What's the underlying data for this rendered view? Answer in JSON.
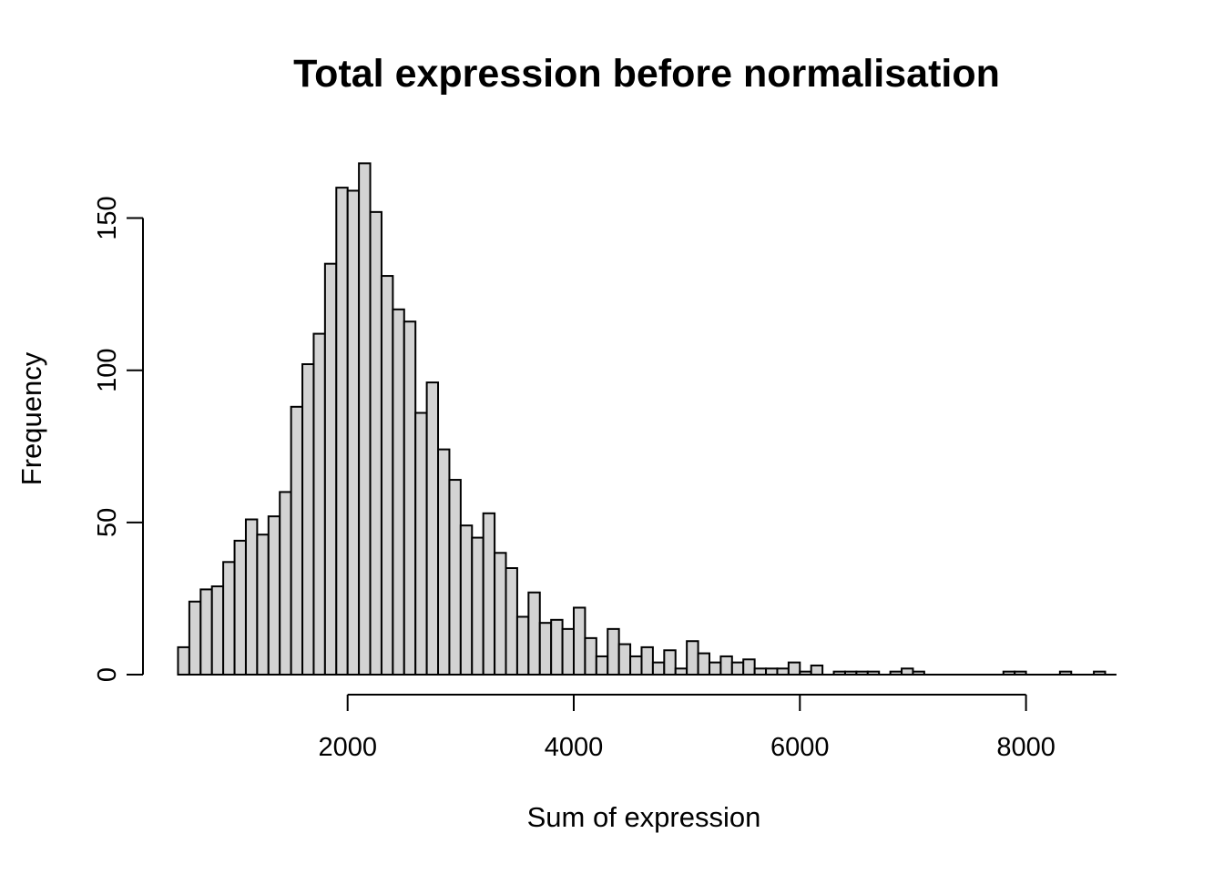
{
  "chart_data": {
    "type": "bar",
    "subtype": "histogram",
    "title": "Total expression before normalisation",
    "xlabel": "Sum of expression",
    "ylabel": "Frequency",
    "bin_start": 500,
    "bin_width": 100,
    "values": [
      9,
      24,
      28,
      29,
      37,
      44,
      51,
      46,
      52,
      60,
      88,
      102,
      112,
      135,
      160,
      159,
      168,
      152,
      131,
      120,
      116,
      86,
      96,
      74,
      64,
      49,
      45,
      53,
      40,
      35,
      19,
      27,
      17,
      18,
      15,
      22,
      12,
      6,
      15,
      10,
      6,
      9,
      4,
      8,
      2,
      11,
      7,
      4,
      6,
      4,
      5,
      2,
      2,
      2,
      4,
      1,
      3,
      0,
      1,
      1,
      1,
      1,
      0,
      1,
      2,
      1,
      0,
      0,
      0,
      0,
      0,
      0,
      0,
      1,
      1,
      0,
      0,
      0,
      1,
      0,
      0,
      1,
      0
    ],
    "x_ticks": [
      2000,
      4000,
      6000,
      8000
    ],
    "y_ticks": [
      0,
      50,
      100,
      150
    ],
    "xlim": [
      500,
      8800
    ],
    "ylim": [
      0,
      168
    ],
    "grid": false,
    "legend": "none",
    "bar_fill": "#d3d3d3",
    "bar_stroke": "#000000",
    "axis_color": "#000000"
  }
}
